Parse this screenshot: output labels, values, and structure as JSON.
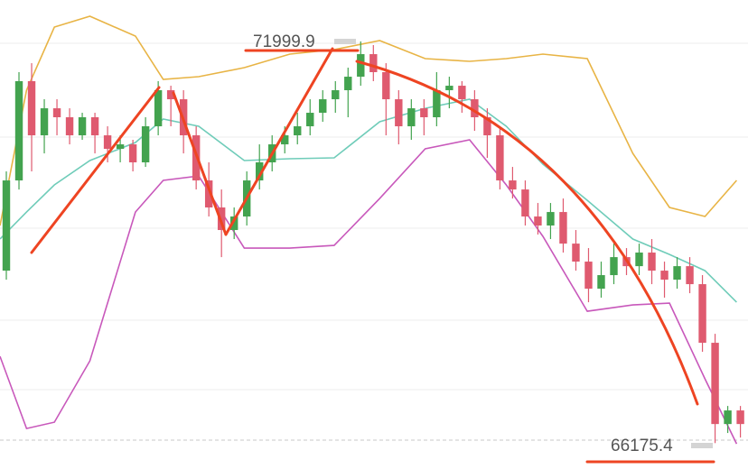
{
  "chart_data": {
    "type": "candlestick",
    "high_label": "71999.9",
    "low_label": "66175.4",
    "xlim": [
      -0.5,
      58.6
    ],
    "ylim": [
      65800,
      72600
    ],
    "up_color": "#43a34f",
    "down_color": "#df5a6f",
    "open": [
      68676,
      69984,
      71423,
      70638,
      71030,
      70900,
      70638,
      70900,
      70638,
      70442,
      70507,
      70246,
      70769,
      71292,
      71161,
      70638,
      69984,
      69592,
      69265,
      69461,
      69984,
      70246,
      70507,
      70638,
      70769,
      70965,
      71161,
      71292,
      71488,
      71815,
      71554,
      71161,
      70769,
      71030,
      70900,
      71292,
      71357,
      71161,
      70900,
      70638,
      69984,
      69853,
      69461,
      69330,
      69526,
      69068,
      68807,
      68414,
      68611,
      68872,
      68741,
      68938,
      68676,
      68545,
      68741,
      68480,
      67630,
      66452,
      66649
    ],
    "high": [
      70115,
      71554,
      71684,
      71161,
      71161,
      71030,
      70965,
      70965,
      70769,
      70638,
      70573,
      70900,
      71423,
      71357,
      71292,
      70769,
      70246,
      69853,
      69592,
      70115,
      70507,
      70638,
      70769,
      70965,
      71161,
      71292,
      71423,
      71619,
      71999.9,
      71946,
      71684,
      71292,
      71161,
      71161,
      71554,
      71488,
      71423,
      71292,
      71030,
      70769,
      70180,
      69984,
      69657,
      69657,
      69722,
      69265,
      69003,
      68807,
      69068,
      69003,
      69068,
      69134,
      68807,
      68872,
      68872,
      68611,
      67760,
      66714,
      66714
    ],
    "low": [
      68545,
      69853,
      70115,
      70376,
      70638,
      70507,
      70573,
      70376,
      70246,
      70246,
      70115,
      70180,
      70638,
      70769,
      70376,
      69853,
      69461,
      68872,
      69134,
      69330,
      69853,
      70115,
      70376,
      70507,
      70638,
      70834,
      70965,
      70900,
      71357,
      71423,
      70638,
      70507,
      70573,
      70638,
      70769,
      71030,
      70965,
      70703,
      70311,
      69853,
      69722,
      69330,
      69199,
      69134,
      68938,
      68676,
      68218,
      68284,
      68480,
      68611,
      68611,
      68480,
      68284,
      68414,
      68349,
      67499,
      66175.4,
      66322,
      66256
    ],
    "close": [
      69984,
      71423,
      70638,
      71030,
      70900,
      70638,
      70900,
      70638,
      70442,
      70507,
      70246,
      70769,
      71292,
      71161,
      70638,
      69984,
      69592,
      69265,
      69461,
      69984,
      70246,
      70507,
      70638,
      70769,
      70965,
      71161,
      71292,
      71488,
      71815,
      71554,
      71161,
      70769,
      71030,
      70900,
      71292,
      71357,
      71161,
      70900,
      70638,
      69984,
      69853,
      69461,
      69330,
      69526,
      69068,
      68807,
      68414,
      68611,
      68872,
      68741,
      68938,
      68676,
      68545,
      68741,
      68480,
      67630,
      66452,
      66649,
      66452
    ],
    "bands": {
      "x": [
        -0.5,
        1.6,
        3.8,
        6.6,
        10.2,
        12.4,
        15.2,
        18.8,
        22.4,
        25.9,
        29.5,
        33.1,
        36.6,
        39.5,
        42.4,
        45.9,
        49.5,
        52.4,
        55.2,
        57.7
      ],
      "series": [
        {
          "color": "#e8b445",
          "values": [
            69330,
            71292,
            72208,
            72365,
            72077,
            71449,
            71488,
            71619,
            71815,
            71881,
            72012,
            71750,
            71711,
            71750,
            71815,
            71750,
            70376,
            69592,
            69461,
            69984
          ]
        },
        {
          "color": "#6fccb9",
          "values": [
            69134,
            69526,
            69919,
            70272,
            70534,
            70874,
            70769,
            70272,
            70298,
            70311,
            70834,
            71030,
            71161,
            70769,
            70220,
            69696,
            69134,
            68911,
            68676,
            68218
          ]
        },
        {
          "color": "#c858bb",
          "values": [
            67433,
            66387,
            66479,
            67368,
            69526,
            69984,
            70049,
            69003,
            69003,
            69042,
            69722,
            70442,
            70573,
            69919,
            69173,
            68087,
            68179,
            68205,
            67106,
            66165
          ]
        }
      ]
    }
  }
}
